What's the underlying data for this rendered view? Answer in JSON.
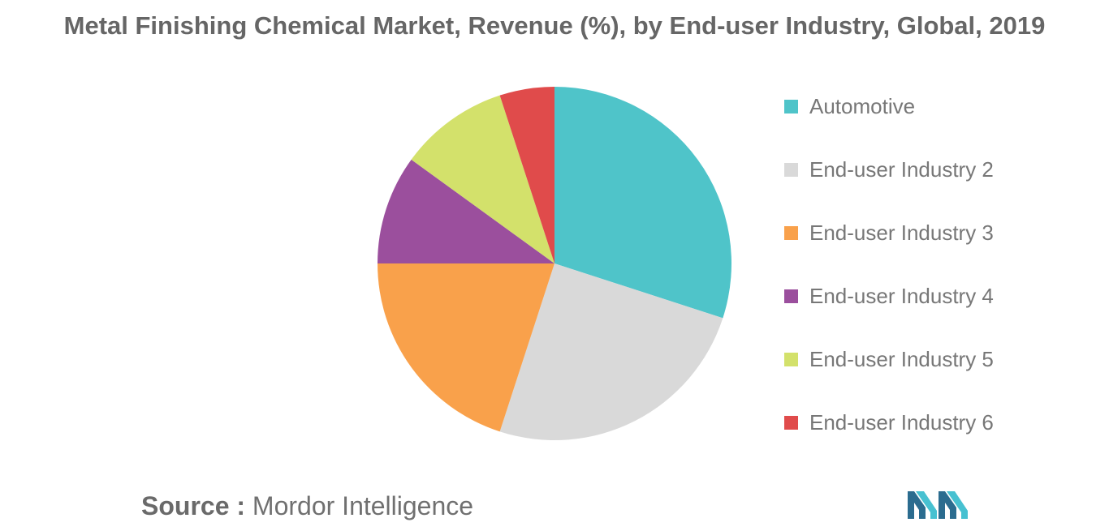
{
  "chart_data": {
    "type": "pie",
    "title": "Metal Finishing Chemical Market, Revenue (%), by End-user Industry, Global, 2019",
    "legend_position": "right",
    "categories": [
      "Automotive",
      "End-user Industry 2",
      "End-user Industry 3",
      "End-user Industry 4",
      "End-user Industry 5",
      "End-user Industry 6"
    ],
    "values": [
      30,
      25,
      20,
      10,
      10,
      5
    ],
    "colors": [
      "#4fc4c9",
      "#d9d9d9",
      "#f9a14b",
      "#9b4f9d",
      "#d3e16b",
      "#e04b4b"
    ]
  },
  "source": {
    "label": "Source :",
    "name": "Mordor Intelligence"
  },
  "logo": {
    "icon": "mordor-intelligence-logo",
    "colors": [
      "#2b6c8f",
      "#47c1d1"
    ]
  }
}
